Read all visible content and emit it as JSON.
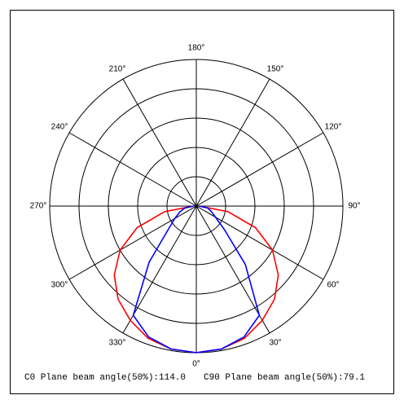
{
  "chart_data": {
    "type": "polar",
    "theta": [
      270,
      280,
      290,
      300,
      310,
      320,
      330,
      340,
      350,
      0,
      10,
      20,
      30,
      40,
      50,
      60,
      70,
      80,
      90
    ],
    "series": [
      {
        "color": "#ff0000",
        "values": [
          0.02,
          0.22,
          0.43,
          0.6,
          0.73,
          0.83,
          0.9,
          0.96,
          0.99,
          1,
          0.99,
          0.96,
          0.9,
          0.83,
          0.73,
          0.6,
          0.43,
          0.22,
          0.02
        ]
      },
      {
        "color": "#0000ff",
        "values": [
          0.02,
          0.08,
          0.12,
          0.17,
          0.25,
          0.5,
          0.86,
          0.95,
          0.99,
          1,
          0.99,
          0.95,
          0.86,
          0.52,
          0.25,
          0.15,
          0.11,
          0.08,
          0.02
        ]
      }
    ],
    "rlim": [
      0,
      1
    ],
    "rticks": [
      0.2,
      0.4,
      0.6,
      0.8,
      1
    ],
    "thetaticks": [
      {
        "value": 0,
        "label": "0°"
      },
      {
        "value": 30,
        "label": "30°"
      },
      {
        "value": 60,
        "label": "60°"
      },
      {
        "value": 90,
        "label": "90°"
      },
      {
        "value": 120,
        "label": "120°"
      },
      {
        "value": 150,
        "label": "150°"
      },
      {
        "value": 180,
        "label": "180°"
      },
      {
        "value": 210,
        "label": "210°"
      },
      {
        "value": 240,
        "label": "240°"
      },
      {
        "value": 270,
        "label": "270°"
      },
      {
        "value": 300,
        "label": "300°"
      },
      {
        "value": 330,
        "label": "330°"
      }
    ],
    "annotations": [
      "C0 Plane beam angle(50%):114.0",
      "C90 Plane beam angle(50%):79.1"
    ]
  }
}
